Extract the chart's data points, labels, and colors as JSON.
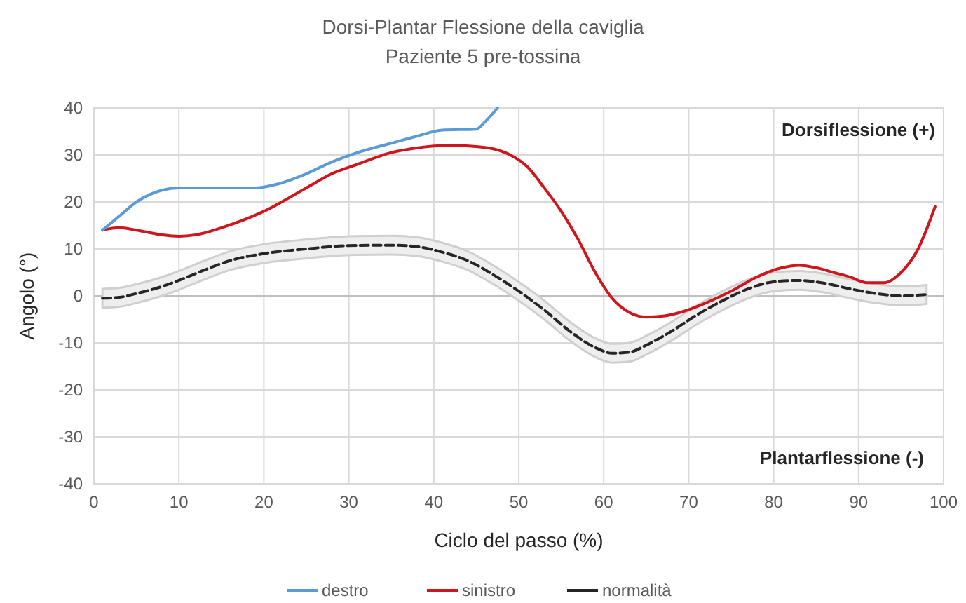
{
  "chart_data": {
    "type": "line",
    "title": "Dorsi-Plantar Flessione della caviglia",
    "subtitle": "Paziente 5 pre-tossina",
    "xlabel": "Ciclo del passo (%)",
    "ylabel": "Angolo (°)",
    "annotations": [
      "Dorsiflessione (+)",
      "Plantarflessione (-)"
    ],
    "xlim": [
      0,
      100
    ],
    "xticks": [
      0,
      10,
      20,
      30,
      40,
      50,
      60,
      70,
      80,
      90,
      100
    ],
    "ylim": [
      -40,
      40
    ],
    "yticks": [
      -40,
      -30,
      -20,
      -10,
      0,
      10,
      20,
      30,
      40
    ],
    "grid": true,
    "legend": "bottom",
    "line_style": "solid",
    "series": [
      {
        "name": "destro",
        "color": "#5b9bd5",
        "x": [
          1,
          3,
          5,
          8,
          10,
          15,
          19,
          22,
          25,
          28,
          31,
          35,
          38,
          41,
          45,
          46,
          47.5
        ],
        "values": [
          14,
          17,
          20,
          22.5,
          23,
          23,
          23,
          24,
          26,
          28.5,
          30.5,
          32.5,
          34,
          35.3,
          35.5,
          37,
          40
        ]
      },
      {
        "name": "sinistro",
        "color": "#d0161d",
        "x": [
          1,
          3,
          5,
          8,
          10,
          12,
          15,
          20,
          25,
          28,
          31,
          35,
          38,
          42,
          45,
          47,
          49,
          51,
          53,
          55,
          57,
          59,
          61,
          63,
          65,
          67,
          69,
          72,
          75,
          78,
          81,
          83,
          85,
          87,
          89,
          91,
          93,
          95,
          97,
          99
        ],
        "values": [
          14,
          14.5,
          14,
          13,
          12.7,
          13,
          14.5,
          18,
          23,
          26,
          28,
          30.5,
          31.5,
          32,
          31.8,
          31.3,
          30,
          27.5,
          23,
          18,
          12,
          5,
          -0.5,
          -3.5,
          -4.5,
          -4.3,
          -3.5,
          -1.5,
          1,
          4,
          6,
          6.5,
          6,
          5,
          4,
          2.8,
          2.8,
          5,
          10,
          19
        ]
      },
      {
        "name": "normalità",
        "color": "#262626",
        "line_style": "dashed",
        "x": [
          1,
          3,
          5,
          8,
          10,
          13,
          16,
          20,
          25,
          30,
          35,
          38,
          41,
          44,
          47,
          50,
          53,
          56,
          59,
          61,
          63,
          65,
          68,
          71,
          74,
          77,
          80,
          83,
          86,
          89,
          92,
          95,
          98
        ],
        "values": [
          -0.5,
          -0.3,
          0.5,
          2,
          3.3,
          5.5,
          7.5,
          9,
          10,
          10.7,
          10.8,
          10.5,
          9.3,
          7.5,
          4.5,
          1,
          -3,
          -7.5,
          -11,
          -12.2,
          -12,
          -10.5,
          -7.5,
          -4,
          -1,
          1.5,
          3,
          3.3,
          2.7,
          1.5,
          0.5,
          0,
          0.3
        ],
        "lower": [
          -2.5,
          -2.3,
          -1.5,
          0,
          1.3,
          3.5,
          5.5,
          7,
          8,
          8.7,
          8.8,
          8.5,
          7.3,
          5.5,
          2.5,
          -1,
          -5,
          -9.5,
          -13,
          -14.2,
          -14,
          -12.5,
          -9.5,
          -6,
          -3,
          -0.5,
          1,
          1.3,
          0.7,
          -0.5,
          -1.5,
          -2,
          -1.7
        ],
        "upper": [
          1.5,
          1.7,
          2.5,
          4,
          5.3,
          7.5,
          9.5,
          11,
          12,
          12.7,
          12.8,
          12.5,
          11.3,
          9.5,
          6.5,
          3,
          -1,
          -5.5,
          -9,
          -10.2,
          -10,
          -8.5,
          -5.5,
          -2,
          1,
          3.5,
          5,
          5.3,
          4.7,
          3.5,
          2.5,
          2,
          2.3
        ]
      }
    ]
  }
}
